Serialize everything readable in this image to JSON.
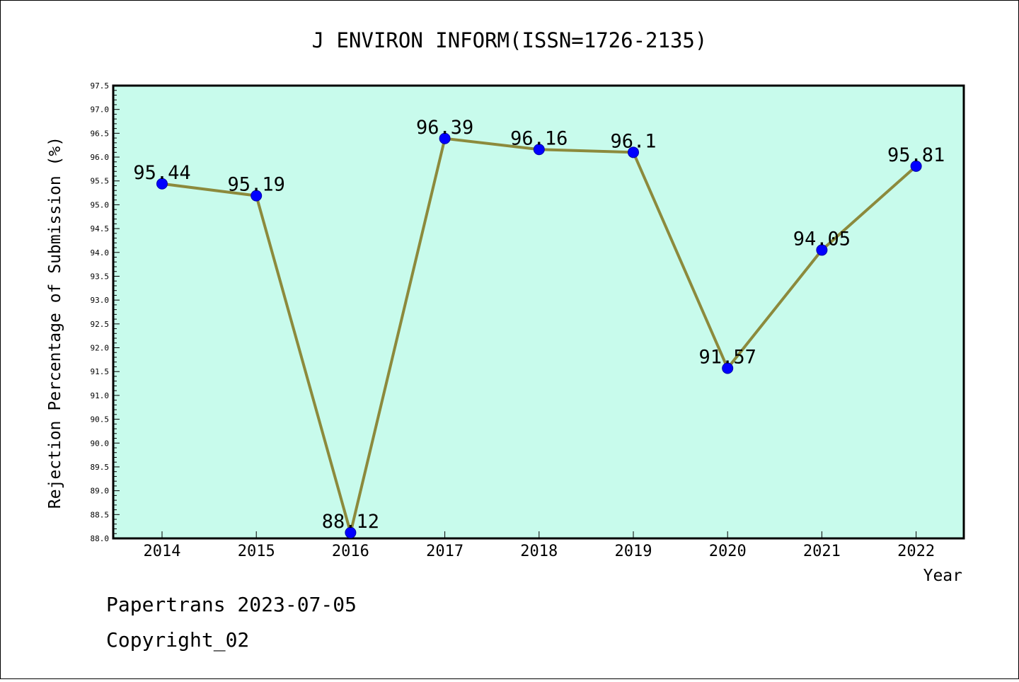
{
  "chart_data": {
    "type": "line",
    "title": "J ENVIRON INFORM(ISSN=1726-2135)",
    "xlabel": "Year",
    "ylabel": "Rejection Percentage of Submission (%)",
    "categories": [
      "2014",
      "2015",
      "2016",
      "2017",
      "2018",
      "2019",
      "2020",
      "2021",
      "2022"
    ],
    "series": [
      {
        "values": [
          95.44,
          95.19,
          88.12,
          96.39,
          96.16,
          96.1,
          91.57,
          94.05,
          95.81
        ],
        "point_labels": [
          "95.44",
          "95.19",
          "88.12",
          "96.39",
          "96.16",
          "96.1",
          "91.57",
          "94.05",
          "95.81"
        ]
      }
    ],
    "ylim": [
      88.0,
      97.5
    ],
    "yticks": [
      "88.0",
      "88.5",
      "89.0",
      "89.5",
      "90.0",
      "90.5",
      "91.0",
      "91.5",
      "92.0",
      "92.5",
      "93.0",
      "93.5",
      "94.0",
      "94.5",
      "95.0",
      "95.5",
      "96.0",
      "96.5",
      "97.0",
      "97.5"
    ],
    "grid": false,
    "colors": {
      "plot_background": "#c8fbec",
      "line": "#8c8a3c",
      "marker": "#0000ff"
    }
  },
  "footer": {
    "line1": "Papertrans 2023-07-05",
    "line2": "Copyright_02"
  }
}
